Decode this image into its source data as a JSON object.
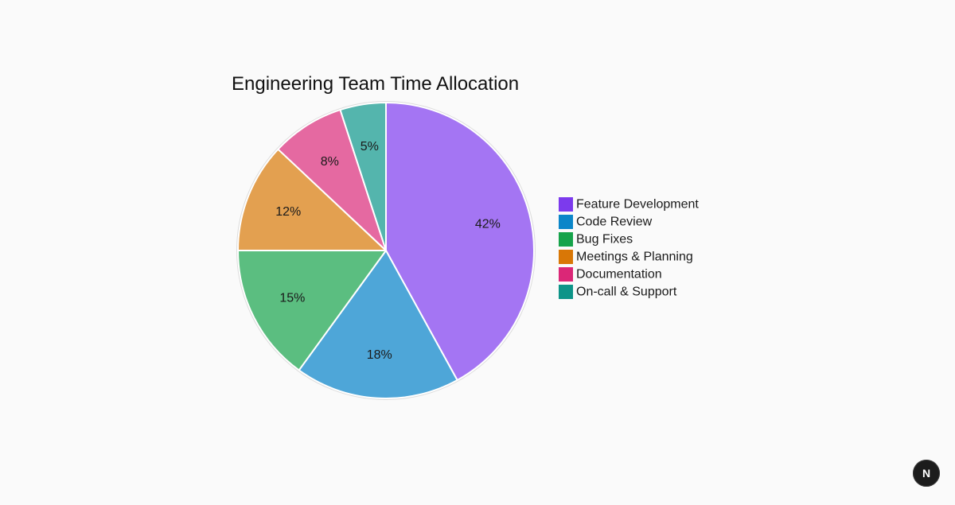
{
  "chart_data": {
    "type": "pie",
    "title": "Engineering Team Time Allocation",
    "labels": [
      "Feature Development",
      "Code Review",
      "Bug Fixes",
      "Meetings & Planning",
      "Documentation",
      "On-call & Support"
    ],
    "values": [
      42,
      18,
      15,
      12,
      8,
      5
    ],
    "value_labels": [
      "42%",
      "18%",
      "15%",
      "12%",
      "8%",
      "5%"
    ],
    "unit": "%",
    "slice_colors": [
      "#a475f3",
      "#4ea6d8",
      "#5bbe80",
      "#e3a050",
      "#e569a1",
      "#54b5ad"
    ],
    "legend_colors": [
      "#7c3aed",
      "#0b86c9",
      "#16a34a",
      "#d97706",
      "#db2777",
      "#0d9488"
    ],
    "start_angle": "top (12 o'clock)",
    "direction": "clockwise",
    "legend_position": "right"
  },
  "badge": {
    "letter": "N",
    "icon": "n-logo-icon"
  }
}
